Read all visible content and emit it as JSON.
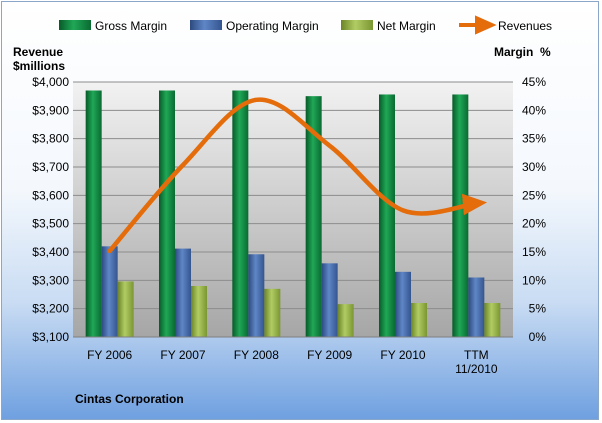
{
  "chart_data": {
    "type": "bar",
    "company": "Cintas Corporation",
    "categories": [
      "FY 2006",
      "FY 2007",
      "FY 2008",
      "FY 2009",
      "FY 2010",
      "TTM 11/2010"
    ],
    "left_axis": {
      "title_line1": "Revenue",
      "title_line2": "$millions",
      "ylim": [
        3100,
        4000
      ],
      "ticks": [
        "$3,100",
        "$3,200",
        "$3,300",
        "$3,400",
        "$3,500",
        "$3,600",
        "$3,700",
        "$3,800",
        "$3,900",
        "$4,000"
      ]
    },
    "right_axis": {
      "title": "Margin  %",
      "ylim": [
        0,
        45
      ],
      "ticks": [
        "0%",
        "5%",
        "10%",
        "15%",
        "20%",
        "25%",
        "30%",
        "35%",
        "40%",
        "45%"
      ]
    },
    "series": [
      {
        "name": "Gross Margin",
        "type": "bar",
        "axis": "right",
        "color": "#0d7a3a",
        "values": [
          43.5,
          43.5,
          43.5,
          42.5,
          42.8,
          42.8
        ]
      },
      {
        "name": "Operating Margin",
        "type": "bar",
        "axis": "right",
        "color": "#3a5f9e",
        "values": [
          16.0,
          15.6,
          14.6,
          13.0,
          11.5,
          10.5
        ]
      },
      {
        "name": "Net Margin",
        "type": "bar",
        "axis": "right",
        "color": "#8aa83a",
        "values": [
          9.8,
          9.0,
          8.5,
          5.8,
          6.0,
          6.0
        ]
      },
      {
        "name": "Revenues",
        "type": "line",
        "axis": "left",
        "color": "#e46c0a",
        "values": [
          3404,
          3707,
          3937,
          3775,
          3547,
          3572
        ]
      }
    ],
    "grid": true,
    "legend_position": "top"
  }
}
